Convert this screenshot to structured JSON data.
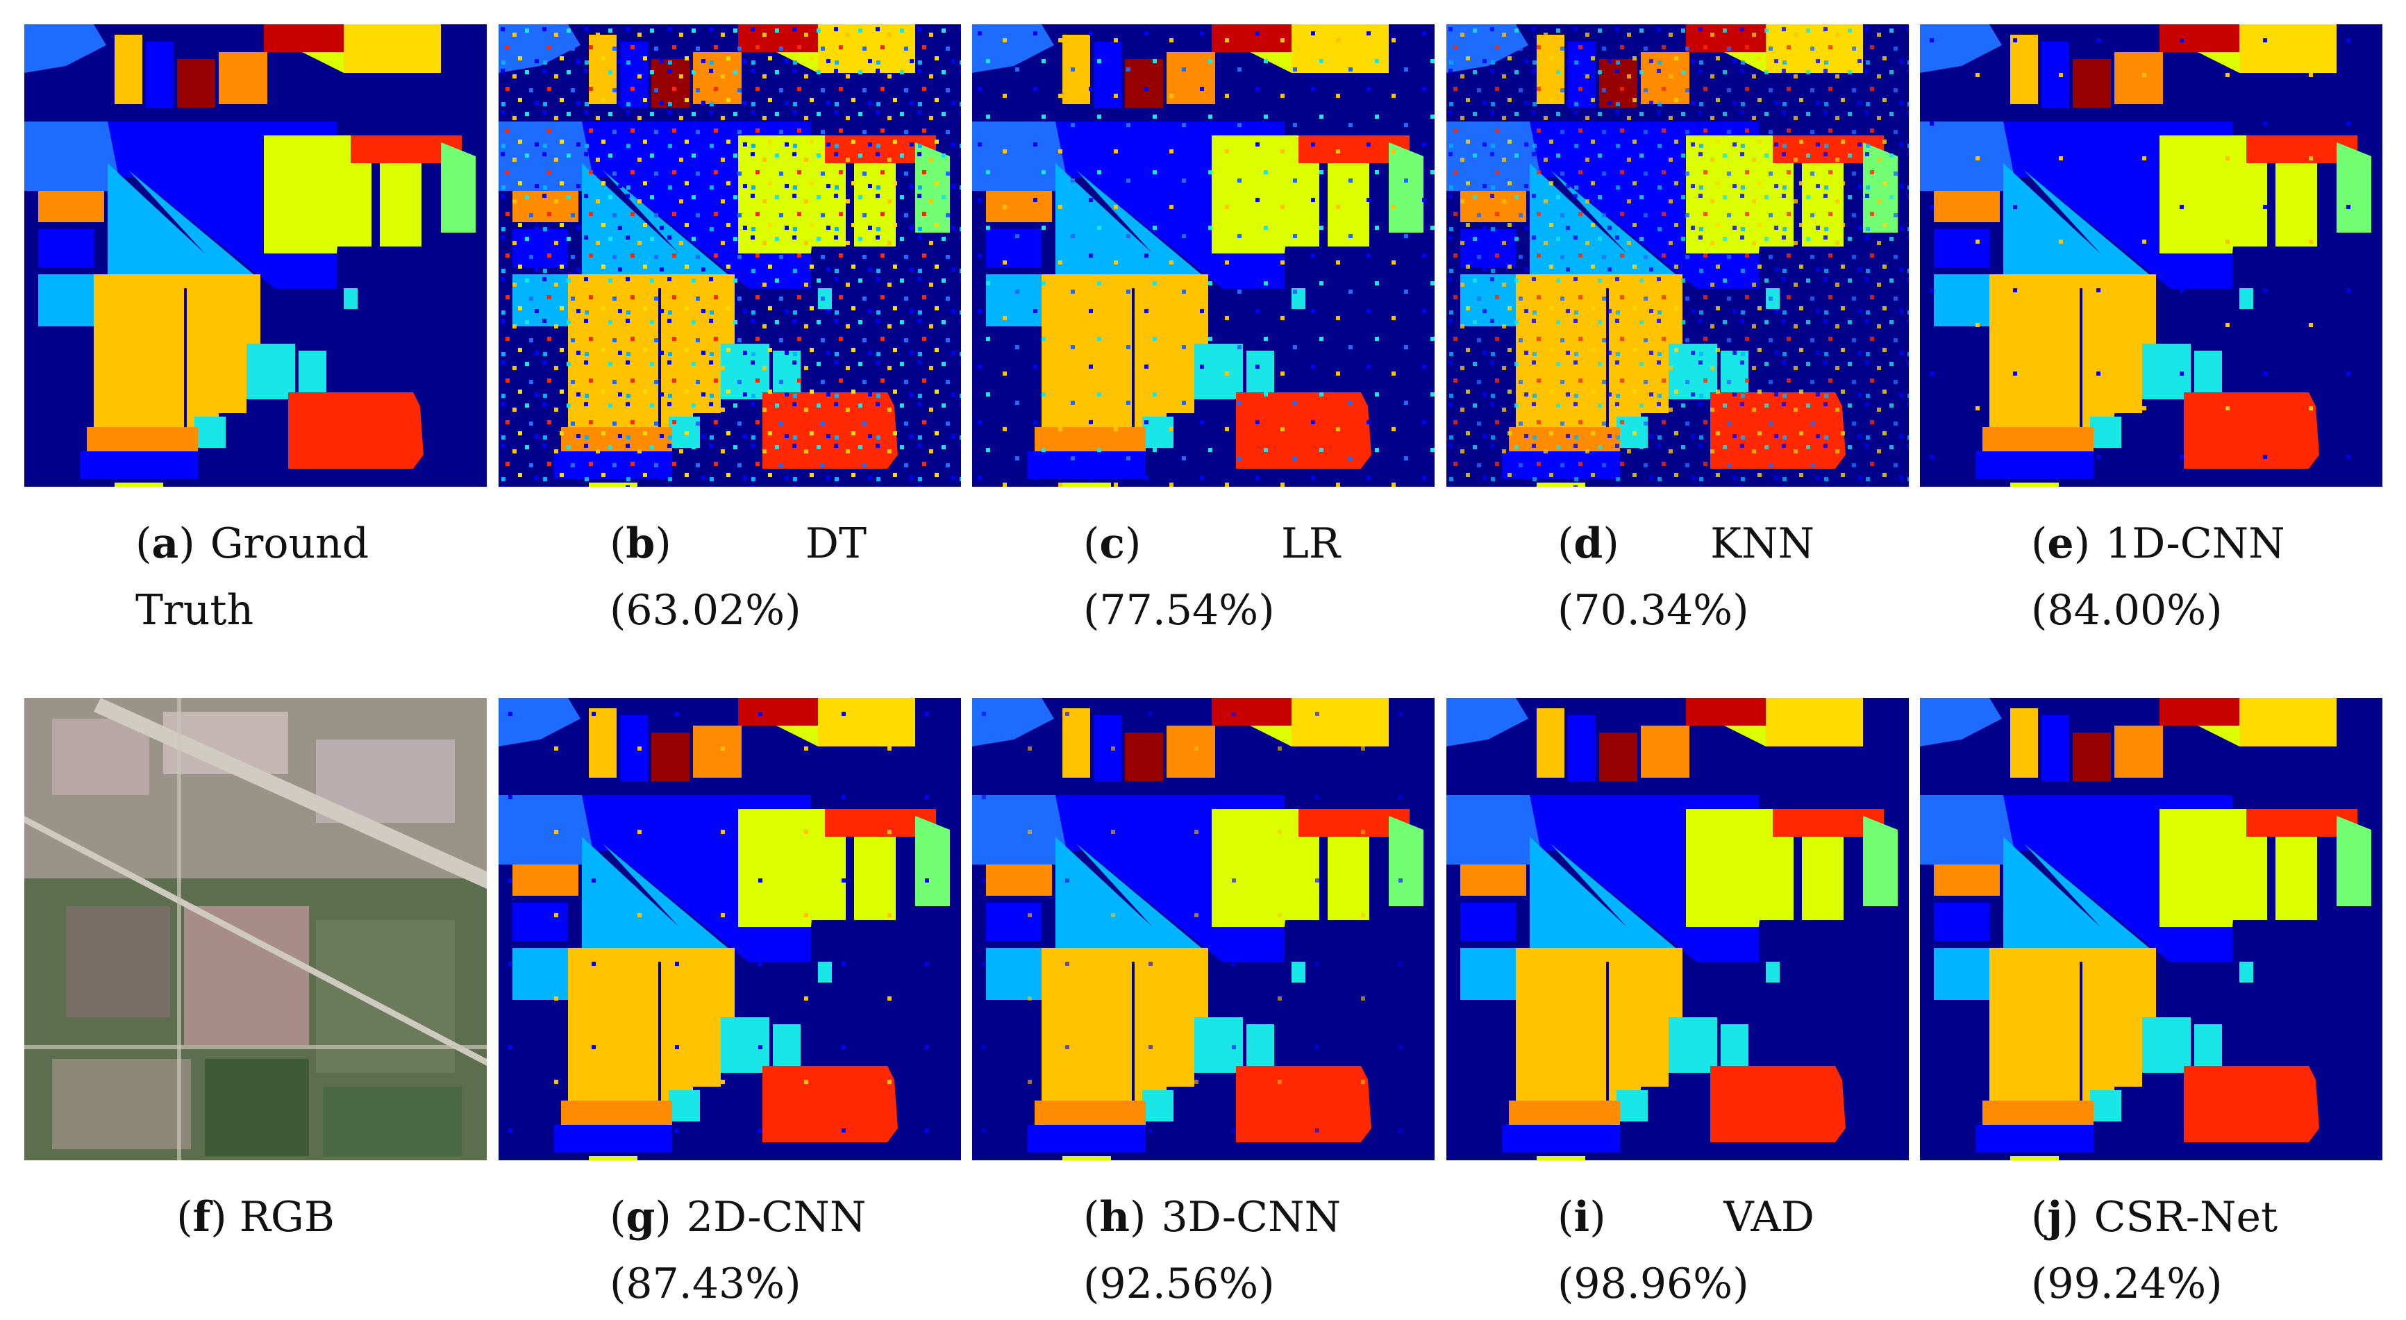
{
  "figure": {
    "panels": [
      {
        "letter": "a",
        "method": "Ground",
        "method2": "Truth",
        "accuracy": ""
      },
      {
        "letter": "b",
        "method": "DT",
        "accuracy": "(63.02%)"
      },
      {
        "letter": "c",
        "method": "LR",
        "accuracy": "(77.54%)"
      },
      {
        "letter": "d",
        "method": "KNN",
        "accuracy": "(70.34%)"
      },
      {
        "letter": "e",
        "method": "1D-CNN",
        "accuracy": "(84.00%)"
      },
      {
        "letter": "f",
        "method": "RGB",
        "accuracy": ""
      },
      {
        "letter": "g",
        "method": "2D-CNN",
        "accuracy": "(87.43%)"
      },
      {
        "letter": "h",
        "method": "3D-CNN",
        "accuracy": "(92.56%)"
      },
      {
        "letter": "i",
        "method": "VAD",
        "accuracy": "(98.96%)"
      },
      {
        "letter": "j",
        "method": "CSR-Net",
        "accuracy": "(99.24%)"
      }
    ],
    "colors": {
      "background": "#00008b",
      "blue": "#0000ff",
      "mid_blue": "#1e6bff",
      "sky": "#00b4ff",
      "cyan": "#19e6e6",
      "green": "#73ff73",
      "lime": "#dcff00",
      "yellow": "#ffdc00",
      "gold": "#ffc300",
      "orange": "#ff8c00",
      "red": "#ff2800",
      "maroon": "#960000",
      "dark_red": "#c80000"
    }
  }
}
